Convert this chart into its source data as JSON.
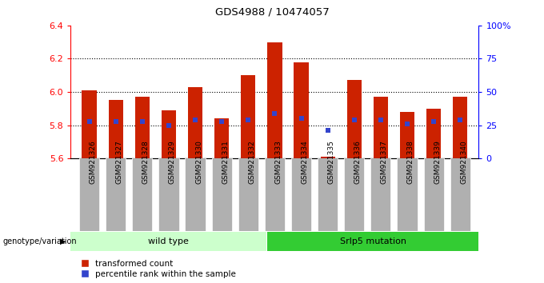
{
  "title": "GDS4988 / 10474057",
  "samples": [
    "GSM921326",
    "GSM921327",
    "GSM921328",
    "GSM921329",
    "GSM921330",
    "GSM921331",
    "GSM921332",
    "GSM921333",
    "GSM921334",
    "GSM921335",
    "GSM921336",
    "GSM921337",
    "GSM921338",
    "GSM921339",
    "GSM921340"
  ],
  "red_values": [
    6.01,
    5.95,
    5.97,
    5.89,
    6.03,
    5.84,
    6.1,
    6.3,
    6.18,
    5.61,
    6.07,
    5.97,
    5.88,
    5.9,
    5.97
  ],
  "blue_values": [
    5.82,
    5.82,
    5.82,
    5.8,
    5.83,
    5.82,
    5.83,
    5.87,
    5.84,
    5.77,
    5.83,
    5.83,
    5.81,
    5.82,
    5.83
  ],
  "ylim_left": [
    5.6,
    6.4
  ],
  "ylim_right": [
    0,
    100
  ],
  "yticks_left": [
    5.6,
    5.8,
    6.0,
    6.2,
    6.4
  ],
  "yticks_right": [
    0,
    25,
    50,
    75,
    100
  ],
  "ytick_labels_right": [
    "0",
    "25",
    "50",
    "75",
    "100%"
  ],
  "group1_label": "wild type",
  "group2_label": "Srlp5 mutation",
  "group1_count": 7,
  "group2_count": 8,
  "bar_color": "#cc2200",
  "blue_color": "#3344cc",
  "group1_bg": "#ccffcc",
  "group2_bg": "#33cc33",
  "tick_bg": "#b0b0b0",
  "legend_red_label": "transformed count",
  "legend_blue_label": "percentile rank within the sample",
  "genotype_label": "genotype/variation",
  "baseline": 5.6,
  "bar_width": 0.55,
  "dotted_lines": [
    5.8,
    6.0,
    6.2
  ]
}
